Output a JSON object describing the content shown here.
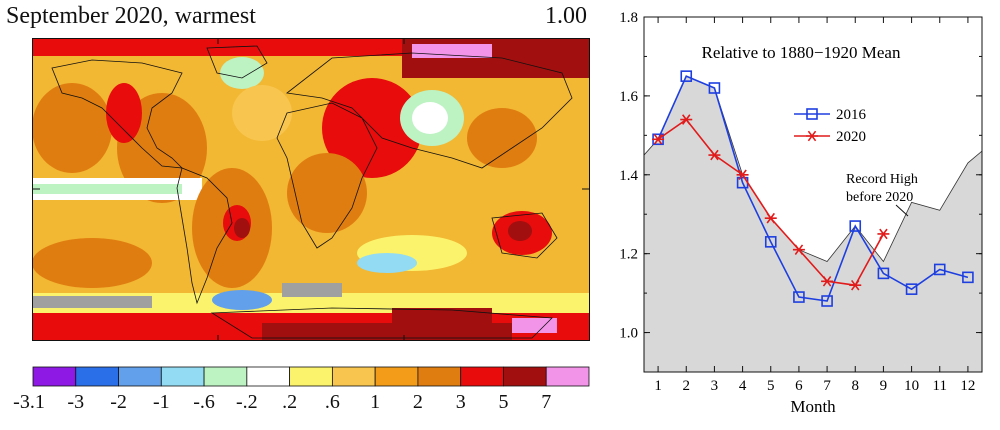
{
  "map": {
    "title": "September 2020, warmest",
    "value": "1.00",
    "colors": {
      "land_outline": "#111111",
      "ocean_base": "#f2b733"
    }
  },
  "colorbar": {
    "labels": [
      "-3.1",
      "-3",
      "-2",
      "-1",
      "-.6",
      "-.2",
      ".2",
      ".6",
      "1",
      "2",
      "3",
      "5",
      "7"
    ],
    "colors": [
      "#8e19e4",
      "#2a6fe8",
      "#62a0ec",
      "#92dbf3",
      "#bdf2c3",
      "#ffffff",
      "#fbf36b",
      "#f8c54e",
      "#f29c19",
      "#e07d10",
      "#e80c0c",
      "#a10f0f",
      "#f295e9"
    ]
  },
  "chart_data": {
    "type": "line",
    "title": "Relative to 1880−1920 Mean",
    "xlabel": "Month",
    "ylabel": "",
    "xlim": [
      0.5,
      12.5
    ],
    "ylim": [
      0.9,
      1.8
    ],
    "x_ticks": [
      "1",
      "2",
      "3",
      "4",
      "5",
      "6",
      "7",
      "8",
      "9",
      "10",
      "11",
      "12"
    ],
    "y_ticks": [
      "1.0",
      "1.2",
      "1.4",
      "1.6",
      "1.8"
    ],
    "series": [
      {
        "name": "2016",
        "color": "#1e3fe0",
        "marker": "square",
        "x": [
          1,
          2,
          3,
          4,
          5,
          6,
          7,
          8,
          9,
          10,
          11,
          12
        ],
        "values": [
          1.49,
          1.65,
          1.62,
          1.38,
          1.23,
          1.09,
          1.08,
          1.27,
          1.15,
          1.11,
          1.16,
          1.14
        ]
      },
      {
        "name": "2020",
        "color": "#e11b1b",
        "marker": "star",
        "x": [
          1,
          2,
          3,
          4,
          5,
          6,
          7,
          8,
          9
        ],
        "values": [
          1.49,
          1.54,
          1.45,
          1.4,
          1.29,
          1.21,
          1.13,
          1.12,
          1.25
        ]
      }
    ],
    "record_high": {
      "label_line1": "Record High",
      "label_line2": "before 2020",
      "fill": "#d8d8d8",
      "x": [
        0.5,
        1,
        2,
        3,
        4,
        5,
        6,
        7,
        8,
        9,
        10,
        11,
        12,
        12.5
      ],
      "values": [
        1.45,
        1.49,
        1.65,
        1.62,
        1.4,
        1.29,
        1.21,
        1.18,
        1.27,
        1.18,
        1.33,
        1.31,
        1.43,
        1.46
      ]
    }
  }
}
